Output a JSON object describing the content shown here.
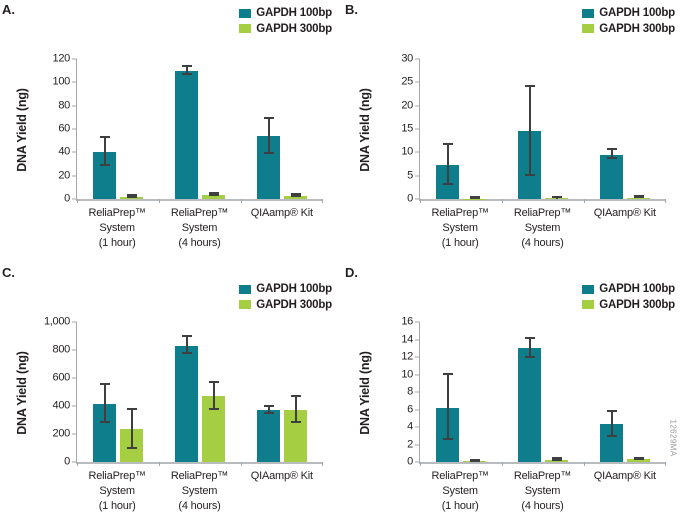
{
  "figure_number": "12629MA",
  "chart_data": [
    {
      "panel_label": "A.",
      "type": "bar",
      "ylabel": "DNA Yield (ng)",
      "ylim": [
        0,
        120
      ],
      "yticks": [
        0,
        20,
        40,
        60,
        80,
        100,
        120
      ],
      "ytick_labels": [
        "0",
        "20",
        "40",
        "60",
        "80",
        "100",
        "120"
      ],
      "grid": false,
      "legend_position": "top-right",
      "categories": [
        [
          "ReliaPrep™",
          "System",
          "(1 hour)"
        ],
        [
          "ReliaPrep™",
          "System",
          "(4 hours)"
        ],
        [
          "QIAamp® Kit"
        ]
      ],
      "series": [
        {
          "name": "GAPDH 100bp",
          "color": "#0e7e8c",
          "values": [
            40.5,
            110,
            54
          ],
          "errors": [
            12,
            3.5,
            15
          ]
        },
        {
          "name": "GAPDH 300bp",
          "color": "#a6ce42",
          "values": [
            1.5,
            3.5,
            2.5
          ],
          "errors": [
            0.7,
            0.5,
            0.7
          ]
        }
      ]
    },
    {
      "panel_label": "B.",
      "type": "bar",
      "ylabel": "DNA Yield (ng)",
      "ylim": [
        0,
        30
      ],
      "yticks": [
        0,
        5,
        10,
        15,
        20,
        25,
        30
      ],
      "ytick_labels": [
        "0",
        "5",
        "10",
        "15",
        "20",
        "25",
        "30"
      ],
      "grid": false,
      "legend_position": "top-right",
      "categories": [
        [
          "ReliaPrep™",
          "System",
          "(1 hour)"
        ],
        [
          "ReliaPrep™",
          "System",
          "(4 hours)"
        ],
        [
          "QIAamp® Kit"
        ]
      ],
      "series": [
        {
          "name": "GAPDH 100bp",
          "color": "#0e7e8c",
          "values": [
            7.3,
            14.5,
            9.5
          ],
          "errors": [
            4.2,
            9.5,
            1.0
          ]
        },
        {
          "name": "GAPDH 300bp",
          "color": "#a6ce42",
          "values": [
            0.08,
            0.2,
            0.25
          ],
          "errors": [
            0.05,
            0.08,
            0.08
          ]
        }
      ]
    },
    {
      "panel_label": "C.",
      "type": "bar",
      "ylabel": "DNA Yield (ng)",
      "ylim": [
        0,
        1000
      ],
      "yticks": [
        0,
        200,
        400,
        600,
        800,
        1000
      ],
      "ytick_labels": [
        "0",
        "200",
        "400",
        "600",
        "800",
        "1,000"
      ],
      "grid": false,
      "legend_position": "top-right",
      "categories": [
        [
          "ReliaPrep™",
          "System",
          "(1 hour)"
        ],
        [
          "ReliaPrep™",
          "System",
          "(4 hours)"
        ],
        [
          "QIAamp® Kit"
        ]
      ],
      "series": [
        {
          "name": "GAPDH 100bp",
          "color": "#0e7e8c",
          "values": [
            415,
            830,
            368
          ],
          "errors": [
            135,
            60,
            22
          ]
        },
        {
          "name": "GAPDH 300bp",
          "color": "#a6ce42",
          "values": [
            235,
            470,
            372
          ],
          "errors": [
            140,
            97,
            90
          ]
        }
      ]
    },
    {
      "panel_label": "D.",
      "type": "bar",
      "ylabel": "DNA Yield (ng)",
      "ylim": [
        0,
        16
      ],
      "yticks": [
        0,
        2,
        4,
        6,
        8,
        10,
        12,
        14,
        16
      ],
      "ytick_labels": [
        "0",
        "2",
        "4",
        "6",
        "8",
        "10",
        "12",
        "14",
        "16"
      ],
      "grid": false,
      "legend_position": "top-right",
      "categories": [
        [
          "ReliaPrep™",
          "System",
          "(1 hour)"
        ],
        [
          "ReliaPrep™",
          "System",
          "(4 hours)"
        ],
        [
          "QIAamp® Kit"
        ]
      ],
      "series": [
        {
          "name": "GAPDH 100bp",
          "color": "#0e7e8c",
          "values": [
            6.2,
            13,
            4.3
          ],
          "errors": [
            3.7,
            1.1,
            1.4
          ]
        },
        {
          "name": "GAPDH 300bp",
          "color": "#a6ce42",
          "values": [
            0.1,
            0.25,
            0.3
          ],
          "errors": [
            0.06,
            0.15,
            0.1
          ]
        }
      ]
    }
  ]
}
